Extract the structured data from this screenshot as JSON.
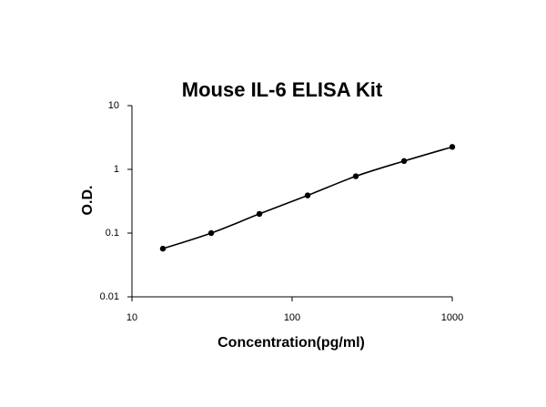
{
  "chart_data": {
    "type": "scatter",
    "title": "Mouse IL-6 ELISA Kit",
    "x_label": "Concentration(pg/ml)",
    "y_label": "O.D.",
    "x_scale": "log",
    "y_scale": "log",
    "xlim": [
      10,
      1000
    ],
    "xticks": [
      10,
      100,
      1000
    ],
    "ylim": [
      0.01,
      10
    ],
    "yticks": [
      0.01,
      0.1,
      1,
      10
    ],
    "series": [
      {
        "color": "#000000",
        "x": [
          15.6,
          31.25,
          62.5,
          125,
          250,
          500,
          1000
        ],
        "values": [
          0.057,
          0.1,
          0.2,
          0.39,
          0.78,
          1.35,
          2.25
        ]
      }
    ]
  }
}
